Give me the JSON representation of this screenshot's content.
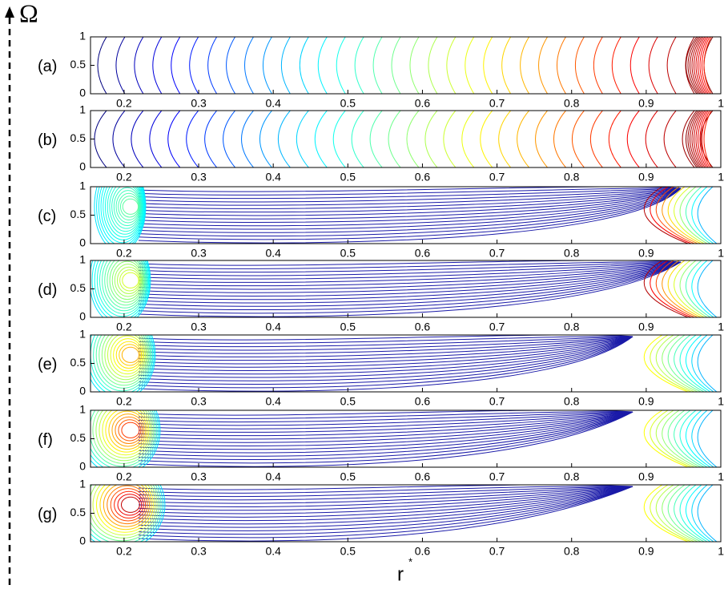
{
  "axis_labels": {
    "y": "Ω",
    "x": "r",
    "x_superscript": "*"
  },
  "chart_data": [
    {
      "type": "contour",
      "panel_label": "(a)",
      "xlim": [
        0.155,
        1.0
      ],
      "ylim": [
        0,
        1
      ],
      "xticks": [
        0.2,
        0.3,
        0.4,
        0.5,
        0.6,
        0.7,
        0.8,
        0.9,
        1
      ],
      "yticks": [
        0,
        0.5,
        1
      ]
    },
    {
      "type": "contour",
      "panel_label": "(b)",
      "xlim": [
        0.155,
        1.0
      ],
      "ylim": [
        0,
        1
      ],
      "xticks": [
        0.2,
        0.3,
        0.4,
        0.5,
        0.6,
        0.7,
        0.8,
        0.9,
        1
      ],
      "yticks": [
        0,
        0.5,
        1
      ]
    },
    {
      "type": "contour",
      "panel_label": "(c)",
      "xlim": [
        0.155,
        1.0
      ],
      "ylim": [
        0,
        1
      ],
      "xticks": [
        0.2,
        0.3,
        0.4,
        0.5,
        0.6,
        0.7,
        0.8,
        0.9,
        1
      ],
      "yticks": [
        0,
        0.5,
        1
      ]
    },
    {
      "type": "contour",
      "panel_label": "(d)",
      "xlim": [
        0.155,
        1.0
      ],
      "ylim": [
        0,
        1
      ],
      "xticks": [
        0.2,
        0.3,
        0.4,
        0.5,
        0.6,
        0.7,
        0.8,
        0.9,
        1
      ],
      "yticks": [
        0,
        0.5,
        1
      ]
    },
    {
      "type": "contour",
      "panel_label": "(e)",
      "xlim": [
        0.155,
        1.0
      ],
      "ylim": [
        0,
        1
      ],
      "xticks": [
        0.2,
        0.3,
        0.4,
        0.5,
        0.6,
        0.7,
        0.8,
        0.9,
        1
      ],
      "yticks": [
        0,
        0.5,
        1
      ]
    },
    {
      "type": "contour",
      "panel_label": "(f)",
      "xlim": [
        0.155,
        1.0
      ],
      "ylim": [
        0,
        1
      ],
      "xticks": [
        0.2,
        0.3,
        0.4,
        0.5,
        0.6,
        0.7,
        0.8,
        0.9,
        1
      ],
      "yticks": [
        0,
        0.5,
        1
      ]
    },
    {
      "type": "contour",
      "panel_label": "(g)",
      "xlim": [
        0.155,
        1.0
      ],
      "ylim": [
        0,
        1
      ],
      "xticks": [
        0.2,
        0.3,
        0.4,
        0.5,
        0.6,
        0.7,
        0.8,
        0.9,
        1
      ],
      "yticks": [
        0,
        0.5,
        1
      ]
    }
  ]
}
